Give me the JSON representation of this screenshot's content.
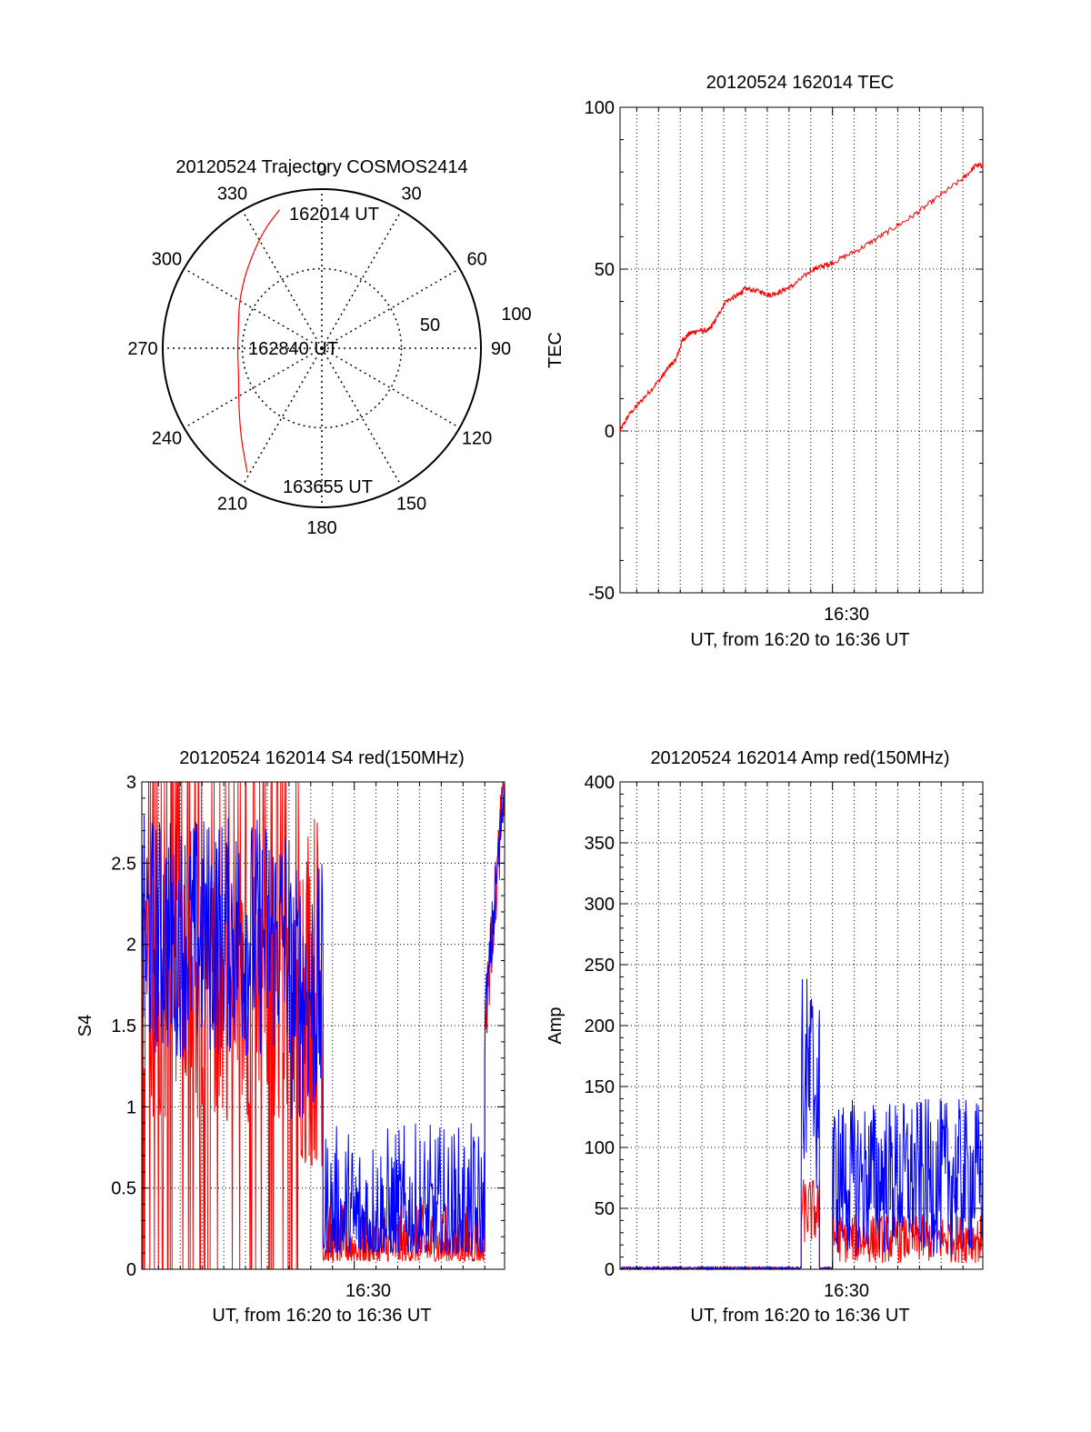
{
  "colors": {
    "red": "#ff0000",
    "blue": "#0000ff",
    "axis": "#000000",
    "grid": "#000000",
    "background": "#ffffff"
  },
  "chart_data": [
    {
      "id": "trajectory",
      "type": "polar",
      "title": "20120524 Trajectory COSMOS2414",
      "angle_labels": [
        "0",
        "30",
        "60",
        "90",
        "120",
        "150",
        "180",
        "210",
        "240",
        "270",
        "300",
        "330"
      ],
      "angle_values_deg": [
        0,
        30,
        60,
        90,
        120,
        150,
        180,
        210,
        240,
        270,
        300,
        330
      ],
      "radius_labels": [
        "50",
        "100"
      ],
      "radius_range": [
        0,
        100
      ],
      "radius_meaning": "zenith distance, 0 at center",
      "trajectory": {
        "color": "red",
        "points": [
          {
            "az": 343,
            "zd": 91
          },
          {
            "az": 333,
            "zd": 82
          },
          {
            "az": 317,
            "zd": 69
          },
          {
            "az": 300,
            "zd": 60
          },
          {
            "az": 284,
            "zd": 54
          },
          {
            "az": 268,
            "zd": 53
          },
          {
            "az": 252,
            "zd": 55
          },
          {
            "az": 236,
            "zd": 63
          },
          {
            "az": 222,
            "zd": 76
          },
          {
            "az": 211,
            "zd": 91
          }
        ],
        "start_label": "162014 UT",
        "mid_label": "162840 UT",
        "end_label": "163655 UT"
      }
    },
    {
      "id": "tec",
      "type": "line",
      "title": "20120524 162014 TEC",
      "xlabel": "UT, from 16:20 to 16:36 UT",
      "ylabel": "TEC",
      "xlim": [
        16.3372,
        16.6152
      ],
      "ylim": [
        -50,
        100
      ],
      "yticks": [
        "-50",
        "0",
        "50",
        "100"
      ],
      "xtick_label": "16:30",
      "xtick_value": 16.5,
      "series": [
        {
          "name": "TEC",
          "color": "red",
          "x": [
            16.3372,
            16.344,
            16.355,
            16.368,
            16.375,
            16.38,
            16.385,
            16.39,
            16.397,
            16.405,
            16.41,
            16.418,
            16.428,
            16.433,
            16.445,
            16.452,
            16.46,
            16.47,
            16.485,
            16.493,
            16.5,
            16.52,
            16.54,
            16.56,
            16.58,
            16.6,
            16.61,
            16.6152
          ],
          "y": [
            0,
            5,
            10,
            16,
            20,
            22,
            28,
            30,
            31,
            31,
            34,
            40,
            42,
            44,
            43,
            42,
            43,
            45,
            50,
            51,
            52,
            56,
            61,
            66,
            72,
            78,
            82,
            82
          ]
        }
      ]
    },
    {
      "id": "s4",
      "type": "line",
      "title": "20120524 162014 S4 red(150MHz)",
      "xlabel": "UT, from 16:20 to 16:36 UT",
      "ylabel": "S4",
      "xlim": [
        16.3372,
        16.6152
      ],
      "ylim": [
        0,
        3
      ],
      "yticks": [
        "0",
        "0.5",
        "1",
        "1.5",
        "2",
        "2.5",
        "3"
      ],
      "xtick_label": "16:30",
      "xtick_value": 16.5,
      "series": [
        {
          "name": "red (150MHz)",
          "color": "red",
          "segments": [
            {
              "x_range": [
                16.3372,
                16.458
              ],
              "y_range": [
                0,
                3
              ],
              "style": "saturated spikes"
            },
            {
              "x_range": [
                16.458,
                16.476
              ],
              "y_range": [
                0.6,
                2.9
              ],
              "style": "noisy"
            },
            {
              "x_range": [
                16.476,
                16.6
              ],
              "y_range": [
                0.05,
                0.4
              ],
              "style": "low"
            },
            {
              "x_range": [
                16.6,
                16.6152
              ],
              "y_range": [
                1.5,
                3
              ],
              "style": "rising"
            }
          ]
        },
        {
          "name": "blue",
          "color": "blue",
          "segments": [
            {
              "x_range": [
                16.3372,
                16.45
              ],
              "y_range": [
                1.3,
                2.8
              ],
              "style": "noisy"
            },
            {
              "x_range": [
                16.45,
                16.476
              ],
              "y_range": [
                0.9,
                2.5
              ],
              "style": "noisy"
            },
            {
              "x_range": [
                16.476,
                16.6
              ],
              "y_range": [
                0.1,
                0.9
              ],
              "style": "low"
            },
            {
              "x_range": [
                16.6,
                16.6152
              ],
              "y_range": [
                1.5,
                3
              ],
              "style": "rising"
            }
          ]
        }
      ]
    },
    {
      "id": "amp",
      "type": "line",
      "title": "20120524 162014 Amp red(150MHz)",
      "xlabel": "UT, from 16:20 to 16:36 UT",
      "ylabel": "Amp",
      "xlim": [
        16.3372,
        16.6152
      ],
      "ylim": [
        0,
        400
      ],
      "yticks": [
        "0",
        "50",
        "100",
        "150",
        "200",
        "250",
        "300",
        "350",
        "400"
      ],
      "xtick_label": "16:30",
      "xtick_value": 16.5,
      "series": [
        {
          "name": "red (150MHz)",
          "color": "red",
          "segments": [
            {
              "x_range": [
                16.3372,
                16.476
              ],
              "y_range": [
                0,
                2
              ],
              "style": "flat"
            },
            {
              "x_range": [
                16.476,
                16.49
              ],
              "y_range": [
                20,
                75
              ],
              "style": "burst"
            },
            {
              "x_range": [
                16.49,
                16.5
              ],
              "y_range": [
                0,
                2
              ],
              "style": "flat"
            },
            {
              "x_range": [
                16.5,
                16.6152
              ],
              "y_range": [
                5,
                45
              ],
              "style": "noisy"
            }
          ]
        },
        {
          "name": "blue",
          "color": "blue",
          "segments": [
            {
              "x_range": [
                16.3372,
                16.476
              ],
              "y_range": [
                0,
                2
              ],
              "style": "flat"
            },
            {
              "x_range": [
                16.476,
                16.49
              ],
              "y_range": [
                60,
                245
              ],
              "style": "burst"
            },
            {
              "x_range": [
                16.49,
                16.5
              ],
              "y_range": [
                0,
                2
              ],
              "style": "flat"
            },
            {
              "x_range": [
                16.5,
                16.6152
              ],
              "y_range": [
                10,
                140
              ],
              "style": "noisy"
            }
          ]
        }
      ]
    }
  ]
}
